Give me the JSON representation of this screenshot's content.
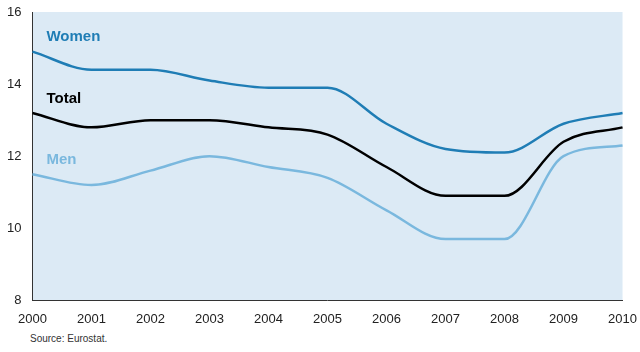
{
  "chart_data": {
    "type": "line",
    "categories": [
      "2000",
      "2001",
      "2002",
      "2003",
      "2004",
      "2005",
      "2006",
      "2007",
      "2008",
      "2009",
      "2010"
    ],
    "series": [
      {
        "name": "Women",
        "color": "#1f7db5",
        "values": [
          14.9,
          14.4,
          14.4,
          14.1,
          13.9,
          13.9,
          12.9,
          12.2,
          12.1,
          12.9,
          13.2
        ]
      },
      {
        "name": "Total",
        "color": "#000000",
        "values": [
          13.2,
          12.8,
          13.0,
          13.0,
          12.8,
          12.6,
          11.7,
          10.9,
          10.9,
          12.4,
          12.8
        ]
      },
      {
        "name": "Men",
        "color": "#7ab8de",
        "values": [
          11.5,
          11.2,
          11.6,
          12.0,
          11.7,
          11.4,
          10.5,
          9.7,
          9.7,
          12.0,
          12.3
        ]
      }
    ],
    "ylim": [
      8,
      16
    ],
    "yticks": [
      8,
      10,
      12,
      14,
      16
    ],
    "grid": false,
    "annotations": [
      "Source: Eurostat."
    ]
  }
}
